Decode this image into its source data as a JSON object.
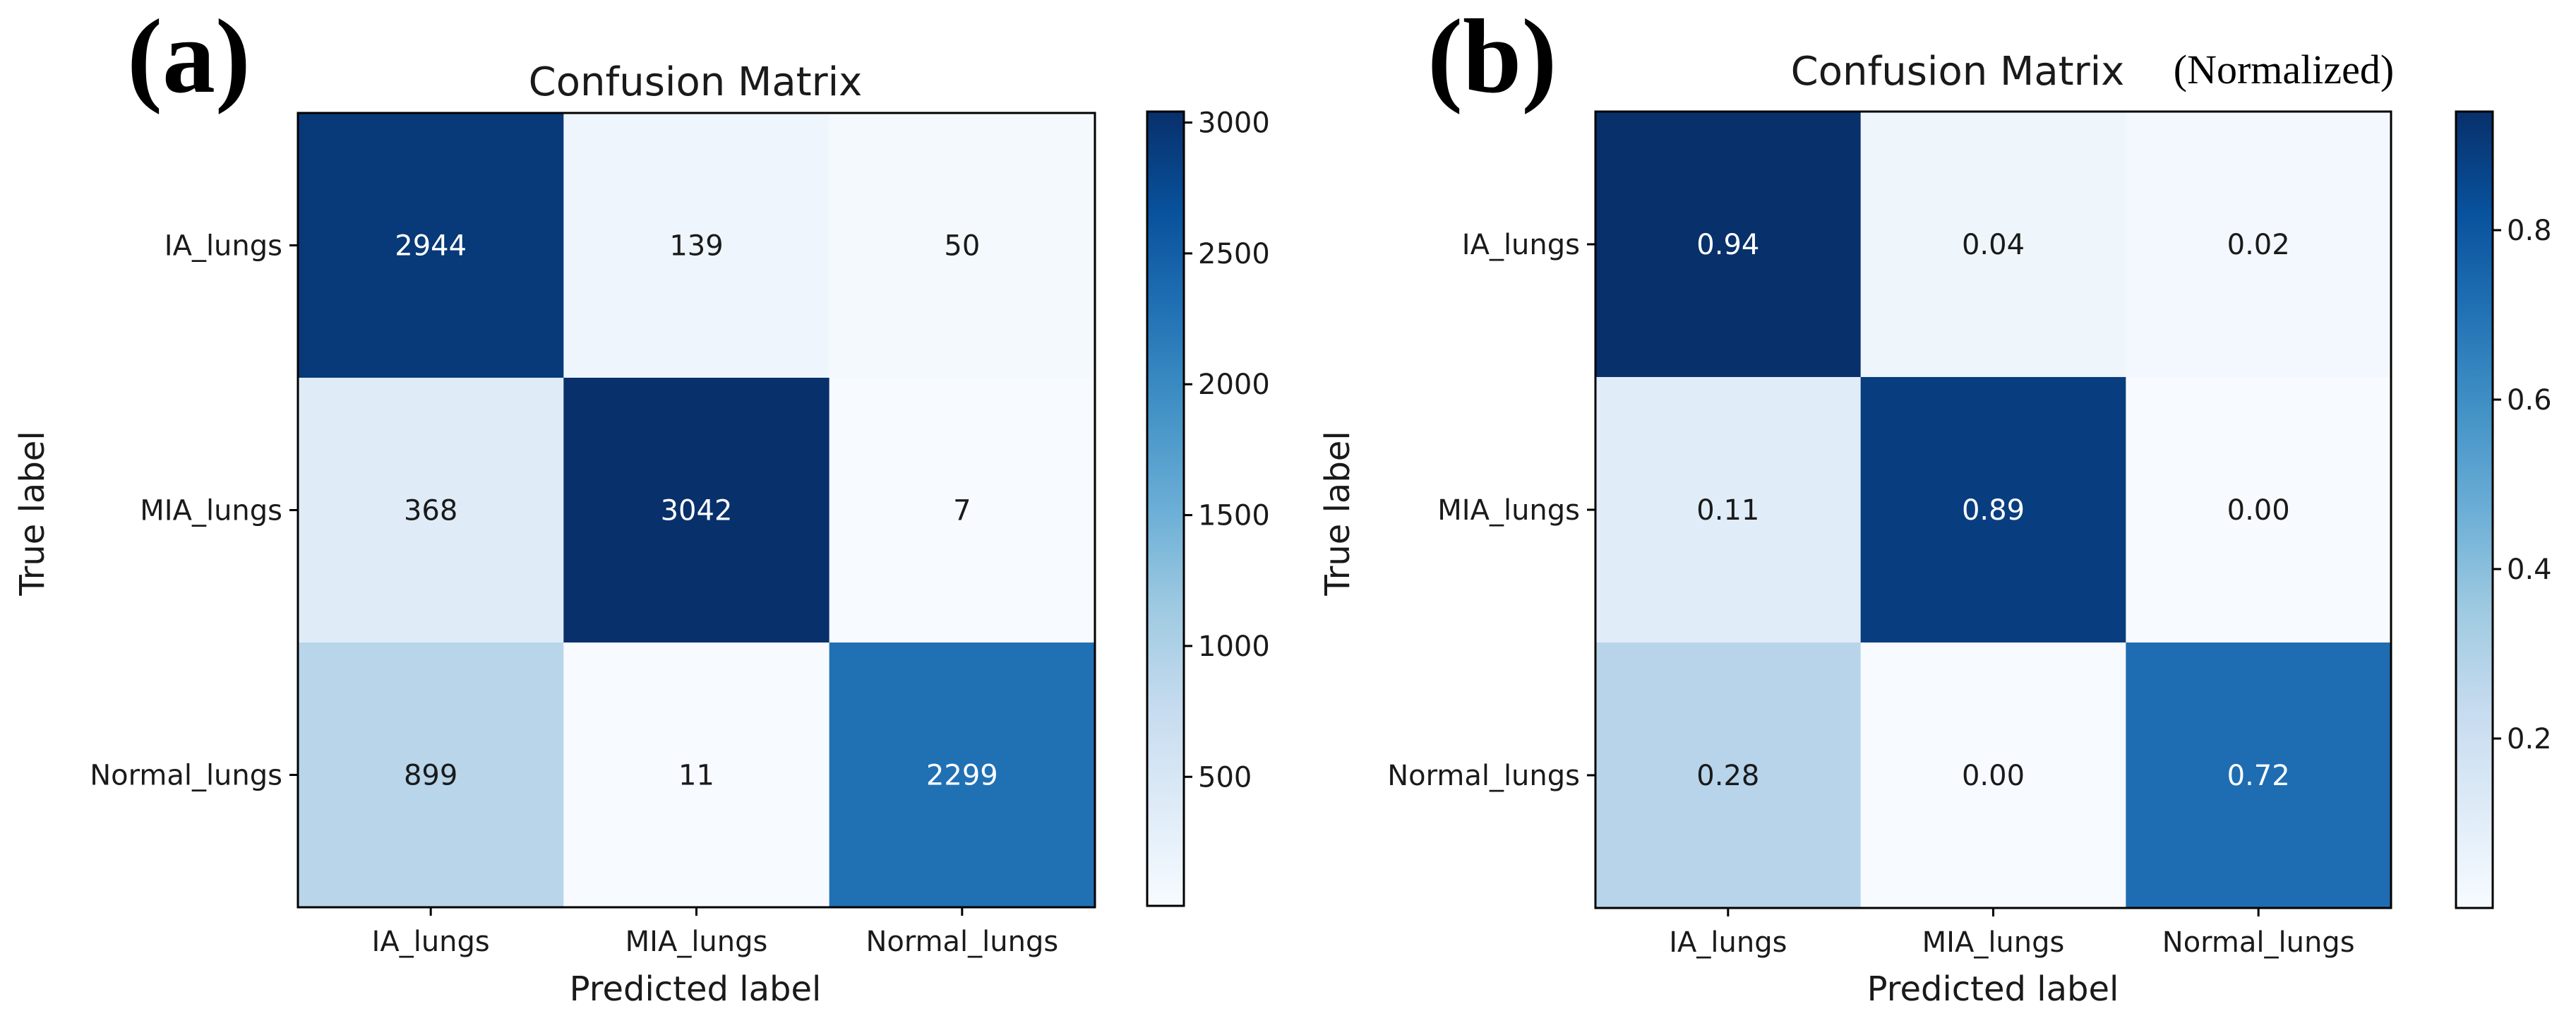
{
  "chart_data": [
    {
      "type": "heatmap",
      "panel_label": "(a)",
      "title": "Confusion Matrix",
      "title_suffix": "",
      "xlabel": "Predicted label",
      "ylabel": "True label",
      "x_categories": [
        "IA_lungs",
        "MIA_lungs",
        "Normal_lungs"
      ],
      "y_categories": [
        "IA_lungs",
        "MIA_lungs",
        "Normal_lungs"
      ],
      "matrix": [
        [
          2944,
          139,
          50
        ],
        [
          368,
          3042,
          7
        ],
        [
          899,
          11,
          2299
        ]
      ],
      "cell_labels": [
        [
          "2944",
          "139",
          "50"
        ],
        [
          "368",
          "3042",
          "7"
        ],
        [
          "899",
          "11",
          "2299"
        ]
      ],
      "color_range": [
        7,
        3042
      ],
      "colorbar_ticks": [
        500,
        1000,
        1500,
        2000,
        2500,
        3000
      ],
      "colorbar_tick_labels": [
        "500",
        "1000",
        "1500",
        "2000",
        "2500",
        "3000"
      ],
      "colormap": "Blues"
    },
    {
      "type": "heatmap",
      "panel_label": "(b)",
      "title": "Confusion Matrix",
      "title_suffix": "(Normalized)",
      "xlabel": "Predicted label",
      "ylabel": "True label",
      "x_categories": [
        "IA_lungs",
        "MIA_lungs",
        "Normal_lungs"
      ],
      "y_categories": [
        "IA_lungs",
        "MIA_lungs",
        "Normal_lungs"
      ],
      "matrix": [
        [
          0.94,
          0.04,
          0.02
        ],
        [
          0.11,
          0.89,
          0.0
        ],
        [
          0.28,
          0.0,
          0.72
        ]
      ],
      "cell_labels": [
        [
          "0.94",
          "0.04",
          "0.02"
        ],
        [
          "0.11",
          "0.89",
          "0.00"
        ],
        [
          "0.28",
          "0.00",
          "0.72"
        ]
      ],
      "color_range": [
        0.0,
        0.94
      ],
      "colorbar_ticks": [
        0.2,
        0.4,
        0.6,
        0.8
      ],
      "colorbar_tick_labels": [
        "0.2",
        "0.4",
        "0.6",
        "0.8"
      ],
      "colormap": "Blues"
    }
  ]
}
